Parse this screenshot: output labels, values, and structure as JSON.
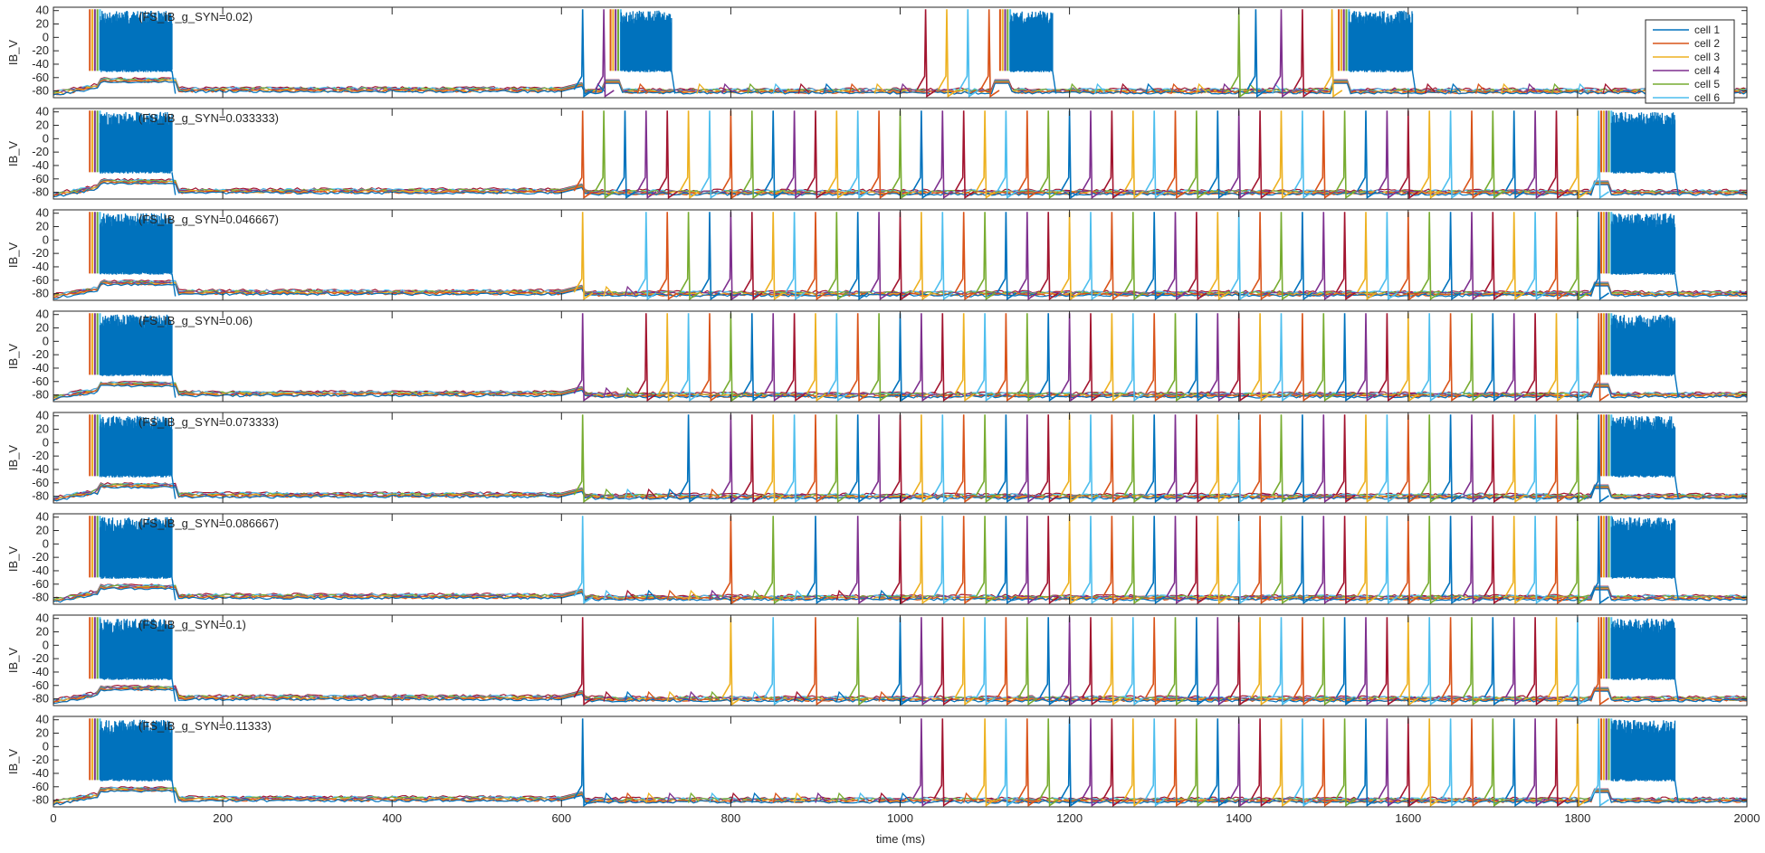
{
  "chart_data": {
    "type": "line",
    "xlabel": "time (ms)",
    "ylabel": "IB_V",
    "xlim": [
      0,
      2000
    ],
    "ylim": [
      -90,
      45
    ],
    "xticks": [
      0,
      200,
      400,
      600,
      800,
      1000,
      1200,
      1400,
      1600,
      1800,
      2000
    ],
    "yticks": [
      -80,
      -60,
      -40,
      -20,
      0,
      20,
      40
    ],
    "grid": false,
    "legend_position": "top-right of first panel",
    "series_colors": [
      "#0072BD",
      "#D95319",
      "#EDB120",
      "#7E2F8E",
      "#77AC30",
      "#4DBEEE",
      "#A2142F"
    ],
    "legend": [
      {
        "label": "cell 1",
        "color": "#0072BD"
      },
      {
        "label": "cell 2",
        "color": "#D95319"
      },
      {
        "label": "cell 3",
        "color": "#EDB120"
      },
      {
        "label": "cell 4",
        "color": "#7E2F8E"
      },
      {
        "label": "cell 5",
        "color": "#77AC30"
      },
      {
        "label": "cell 6",
        "color": "#4DBEEE"
      }
    ],
    "baseline_mV": -78,
    "burst_floor_mV": -50,
    "spike_peak_mV": 42,
    "panels": [
      {
        "label": "(FS_IB_g_SYN=0.02)",
        "initial_burst": [
          55,
          140
        ],
        "bursts": [
          [
            670,
            730
          ],
          [
            1130,
            1180
          ],
          [
            1530,
            1605
          ]
        ],
        "spike_times": [
          625,
          650,
          1030,
          1055,
          1080,
          1105,
          1400,
          1420,
          1450,
          1475,
          1510
        ],
        "bump_times": [
          640,
          690,
          760,
          790,
          820,
          850,
          880,
          910,
          940,
          970,
          1000,
          1200,
          1230,
          1260,
          1290,
          1320,
          1350,
          1380,
          1410,
          1440,
          1620,
          1650,
          1680,
          1710,
          1740,
          1770,
          1800,
          1830
        ]
      },
      {
        "label": "(FS_IB_g_SYN=0.033333)",
        "initial_burst": [
          55,
          140
        ],
        "bursts": [
          [
            1840,
            1915
          ]
        ],
        "spike_times": [
          625,
          650,
          675,
          700,
          725,
          750,
          775,
          800,
          825,
          850,
          875,
          900,
          925,
          950,
          975,
          1000,
          1025,
          1050,
          1075,
          1100,
          1125,
          1150,
          1175,
          1200,
          1225,
          1250,
          1275,
          1300,
          1325,
          1350,
          1375,
          1400,
          1425,
          1450,
          1475,
          1500,
          1525,
          1550,
          1575,
          1600,
          1625,
          1650,
          1675,
          1700,
          1725,
          1750,
          1775,
          1800,
          1825
        ],
        "bump_times": []
      },
      {
        "label": "(FS_IB_g_SYN=0.046667)",
        "initial_burst": [
          55,
          140
        ],
        "bursts": [
          [
            1840,
            1915
          ]
        ],
        "spike_times": [
          625,
          700,
          725,
          750,
          775,
          800,
          825,
          850,
          875,
          900,
          925,
          950,
          975,
          1000,
          1025,
          1050,
          1075,
          1100,
          1125,
          1150,
          1175,
          1200,
          1225,
          1250,
          1275,
          1300,
          1325,
          1350,
          1375,
          1400,
          1425,
          1450,
          1475,
          1500,
          1525,
          1550,
          1575,
          1600,
          1625,
          1650,
          1675,
          1700,
          1725,
          1750,
          1775,
          1800,
          1825
        ],
        "bump_times": [
          650,
          675
        ]
      },
      {
        "label": "(FS_IB_g_SYN=0.06)",
        "initial_burst": [
          55,
          140
        ],
        "bursts": [
          [
            1840,
            1915
          ]
        ],
        "spike_times": [
          625,
          700,
          725,
          750,
          775,
          800,
          825,
          850,
          875,
          900,
          925,
          950,
          975,
          1000,
          1025,
          1050,
          1075,
          1100,
          1125,
          1150,
          1175,
          1200,
          1225,
          1250,
          1275,
          1300,
          1325,
          1350,
          1375,
          1400,
          1425,
          1450,
          1475,
          1500,
          1525,
          1550,
          1575,
          1600,
          1625,
          1650,
          1675,
          1700,
          1725,
          1750,
          1775,
          1800,
          1825
        ],
        "bump_times": [
          650,
          675
        ]
      },
      {
        "label": "(FS_IB_g_SYN=0.073333)",
        "initial_burst": [
          55,
          140
        ],
        "bursts": [
          [
            1840,
            1915
          ]
        ],
        "spike_times": [
          625,
          750,
          800,
          825,
          850,
          875,
          900,
          925,
          950,
          975,
          1000,
          1025,
          1050,
          1075,
          1100,
          1125,
          1150,
          1175,
          1200,
          1225,
          1250,
          1275,
          1300,
          1325,
          1350,
          1375,
          1400,
          1425,
          1450,
          1475,
          1500,
          1525,
          1550,
          1575,
          1600,
          1625,
          1650,
          1675,
          1700,
          1725,
          1750,
          1775,
          1800,
          1825
        ],
        "bump_times": [
          650,
          675,
          700,
          725,
          775
        ]
      },
      {
        "label": "(FS_IB_g_SYN=0.086667)",
        "initial_burst": [
          55,
          140
        ],
        "bursts": [
          [
            1840,
            1915
          ]
        ],
        "spike_times": [
          625,
          800,
          850,
          900,
          950,
          1000,
          1025,
          1050,
          1075,
          1100,
          1125,
          1150,
          1175,
          1200,
          1225,
          1250,
          1275,
          1300,
          1325,
          1350,
          1375,
          1400,
          1425,
          1450,
          1475,
          1500,
          1525,
          1550,
          1575,
          1600,
          1625,
          1650,
          1675,
          1700,
          1725,
          1750,
          1775,
          1800,
          1825
        ],
        "bump_times": [
          650,
          675,
          700,
          725,
          750,
          775,
          825,
          875,
          925,
          975
        ]
      },
      {
        "label": "(FS_IB_g_SYN=0.1)",
        "initial_burst": [
          55,
          140
        ],
        "bursts": [
          [
            1840,
            1915
          ]
        ],
        "spike_times": [
          625,
          800,
          850,
          900,
          950,
          1000,
          1025,
          1050,
          1075,
          1100,
          1125,
          1150,
          1175,
          1200,
          1225,
          1250,
          1275,
          1300,
          1325,
          1350,
          1375,
          1400,
          1425,
          1450,
          1475,
          1500,
          1525,
          1550,
          1575,
          1600,
          1625,
          1650,
          1675,
          1700,
          1725,
          1750,
          1775,
          1800,
          1825
        ],
        "bump_times": [
          650,
          675,
          700,
          725,
          750,
          775,
          825,
          875,
          925,
          975
        ]
      },
      {
        "label": "(FS_IB_g_SYN=0.11333)",
        "initial_burst": [
          55,
          140
        ],
        "bursts": [
          [
            1840,
            1915
          ]
        ],
        "spike_times": [
          625,
          1025,
          1050,
          1100,
          1125,
          1150,
          1175,
          1200,
          1225,
          1250,
          1275,
          1300,
          1325,
          1350,
          1375,
          1400,
          1425,
          1450,
          1475,
          1500,
          1525,
          1550,
          1575,
          1600,
          1625,
          1650,
          1675,
          1700,
          1725,
          1750,
          1775,
          1800,
          1825
        ],
        "bump_times": [
          650,
          675,
          700,
          725,
          750,
          775,
          800,
          825,
          850,
          875,
          900,
          925,
          950,
          975,
          1000,
          1075
        ]
      }
    ]
  }
}
